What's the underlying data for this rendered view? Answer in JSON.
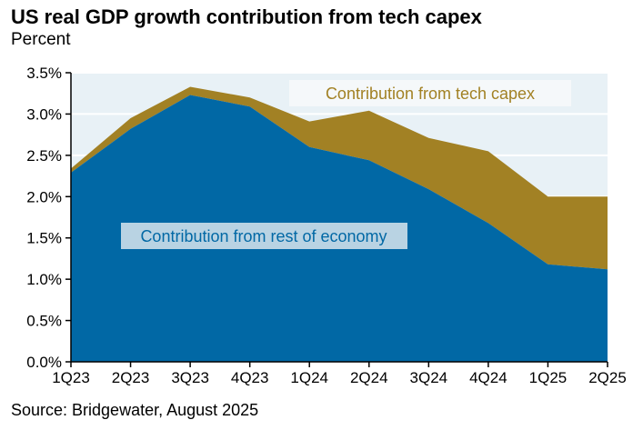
{
  "title": "US real GDP growth contribution from tech capex",
  "subtitle": "Percent",
  "source": "Source: Bridgewater, August 2025",
  "colors": {
    "rest_of_economy": "#0168a5",
    "tech_capex": "#a28124",
    "plot_background": "#e8f1f6"
  },
  "chart_data": {
    "type": "area",
    "stacked": true,
    "categories": [
      "1Q23",
      "2Q23",
      "3Q23",
      "4Q23",
      "1Q24",
      "2Q24",
      "3Q24",
      "4Q24",
      "1Q25",
      "2Q25"
    ],
    "series": [
      {
        "name": "Contribution from rest of economy",
        "values": [
          2.29,
          2.82,
          3.23,
          3.09,
          2.6,
          2.44,
          2.09,
          1.68,
          1.18,
          1.12
        ]
      },
      {
        "name": "Contribution from tech capex",
        "values": [
          0.05,
          0.13,
          0.1,
          0.11,
          0.31,
          0.6,
          0.62,
          0.87,
          0.82,
          0.88
        ]
      }
    ],
    "yticks": [
      "0.0%",
      "0.5%",
      "1.0%",
      "1.5%",
      "2.0%",
      "2.5%",
      "3.0%",
      "3.5%"
    ],
    "ylim": [
      0,
      3.5
    ],
    "grid": true
  }
}
